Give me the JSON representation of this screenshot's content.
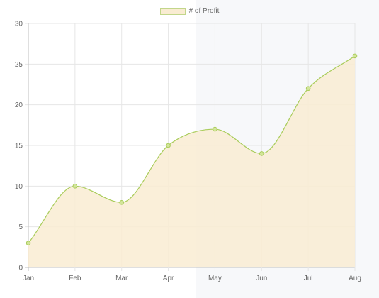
{
  "chart_data": {
    "type": "area",
    "categories": [
      "Jan",
      "Feb",
      "Mar",
      "Apr",
      "May",
      "Jun",
      "Jul",
      "Aug"
    ],
    "series": [
      {
        "name": "# of Profit",
        "values": [
          3,
          10,
          8,
          15,
          17,
          14,
          22,
          26
        ]
      }
    ],
    "ylim": [
      0,
      30
    ],
    "yticks": [
      0,
      5,
      10,
      15,
      20,
      25,
      30
    ],
    "legend_position": "top-center",
    "grid": true,
    "colors": {
      "fill": "#f9ecd2",
      "line": "#a9cc5a",
      "point": "#d3e59b",
      "grid": "#e6e6e6",
      "axis": "#bfbfbf"
    }
  }
}
